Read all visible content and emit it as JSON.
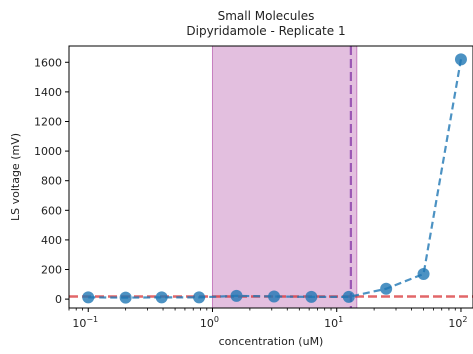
{
  "chart_data": {
    "type": "scatter",
    "title": "Small Molecules",
    "subtitle": "Dipyridamole - Replicate 1",
    "xlabel": "concentration (uM)",
    "ylabel": "LS voltage (mV)",
    "xscale": "log",
    "xlim": [
      0.07,
      125
    ],
    "ylim": [
      -60,
      1710
    ],
    "x_ticks": [
      {
        "value": 0.1,
        "label": "10",
        "exp": "−1"
      },
      {
        "value": 1,
        "label": "10",
        "exp": "0"
      },
      {
        "value": 10,
        "label": "10",
        "exp": "1"
      },
      {
        "value": 100,
        "label": "10",
        "exp": "2"
      }
    ],
    "y_ticks": [
      0,
      200,
      400,
      600,
      800,
      1000,
      1200,
      1400,
      1600
    ],
    "grid": false,
    "series": [
      {
        "x": [
          0.1,
          0.2,
          0.39,
          0.78,
          1.56,
          3.13,
          6.25,
          12.5,
          25,
          50,
          100
        ],
        "y": [
          12,
          10,
          12,
          12,
          22,
          18,
          15,
          15,
          70,
          170,
          1620
        ],
        "color": "#1f77b4"
      }
    ],
    "threshold_line": {
      "y": 18,
      "color": "#d62728"
    },
    "shaded_region": {
      "x_start": 1.0,
      "x_end": 14.5,
      "color": "#c77fc0"
    },
    "vertical_line": {
      "x": 13.0,
      "color": "#8e44ad"
    }
  }
}
